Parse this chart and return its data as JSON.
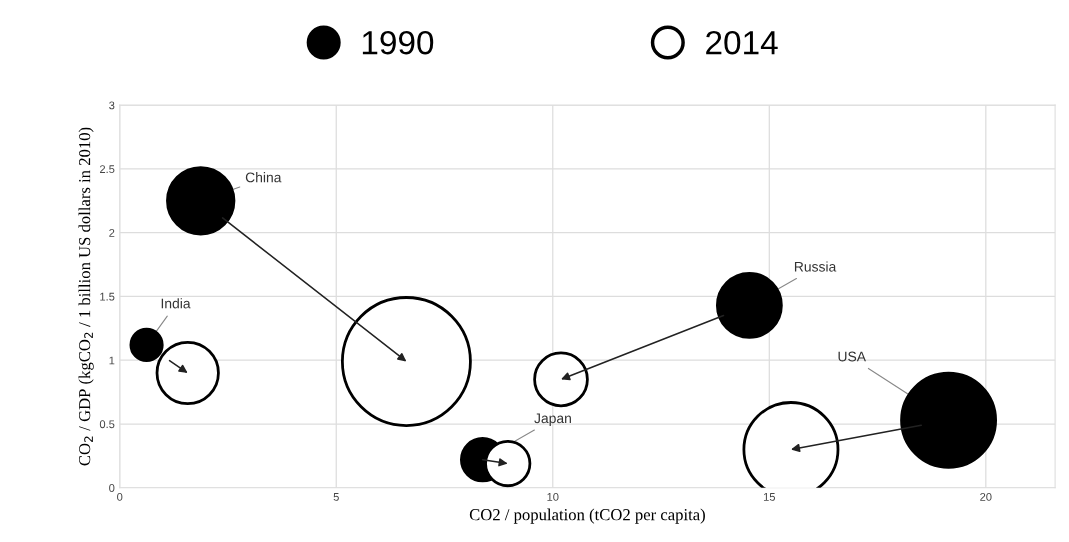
{
  "chart_data": {
    "type": "bubble",
    "xlabel": "CO2 / population (tCO2 per capita)",
    "ylabel": "CO$_{2}$ / GDP (kgCO$_{2}$ / 1 billion US dollars in 2010)",
    "series": [
      {
        "name": "1990",
        "color": "#000000",
        "x": [
          1.87,
          0.62,
          8.38,
          14.54,
          19.14
        ],
        "values": [
          2.25,
          1.12,
          0.22,
          1.43,
          0.53
        ],
        "sizes": [
          0.27,
          0.06,
          0.11,
          0.25,
          0.54
        ]
      },
      {
        "name": "2014",
        "color": "#ffffff",
        "x": [
          6.62,
          1.57,
          8.96,
          10.19,
          15.5
        ],
        "values": [
          0.99,
          0.9,
          0.19,
          0.85,
          0.3
        ],
        "sizes": [
          1,
          0.23,
          0.12,
          0.17,
          0.54
        ]
      }
    ],
    "annotations": [
      {
        "text": "China",
        "x": 1.87,
        "y": 2.25
      },
      {
        "text": "India",
        "x": 0.62,
        "y": 1.12
      },
      {
        "text": "Japan",
        "x": 8.38,
        "y": 0.22
      },
      {
        "text": "Russia",
        "x": 14.54,
        "y": 1.43
      },
      {
        "text": "USA",
        "x": 19.14,
        "y": 0.53
      }
    ],
    "xlim": [
      0,
      21.6
    ],
    "xticks": [
      0,
      5,
      10,
      15,
      20
    ],
    "ylim": [
      0,
      3
    ],
    "yticks": [
      0,
      0.5,
      1,
      1.5,
      2,
      2.5,
      3
    ],
    "grid": true,
    "legend": "top"
  }
}
